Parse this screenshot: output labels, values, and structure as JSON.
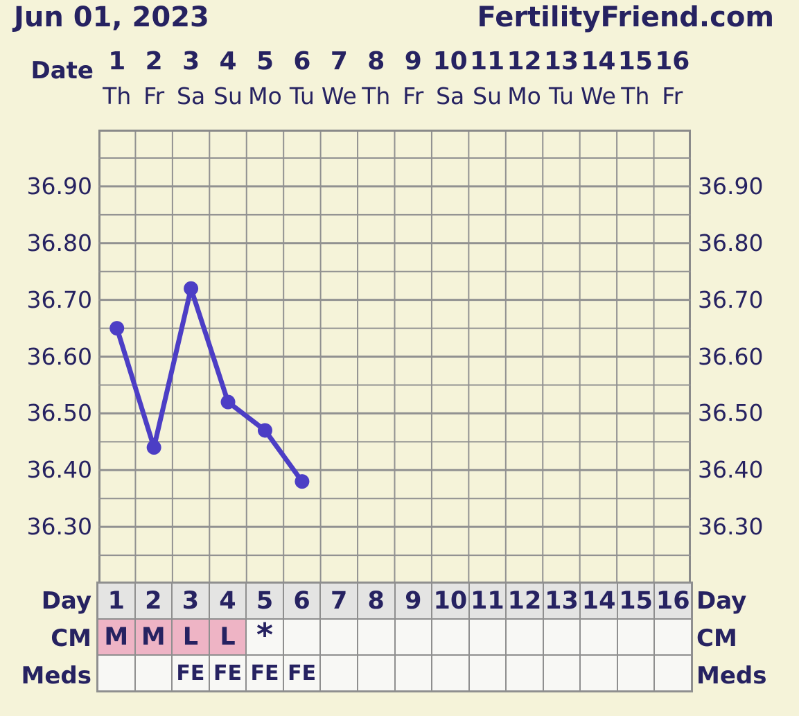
{
  "page": {
    "title": "Jun 01, 2023",
    "brand": "FertilityFriend.com"
  },
  "labels": {
    "date_axis": "Date"
  },
  "chart_data": {
    "type": "line",
    "title": "Basal body temperature chart",
    "x_label": "Date",
    "x_days": [
      "1",
      "2",
      "3",
      "4",
      "5",
      "6",
      "7",
      "8",
      "9",
      "10",
      "11",
      "12",
      "13",
      "14",
      "15",
      "16"
    ],
    "weekdays": [
      "Th",
      "Fr",
      "Sa",
      "Su",
      "Mo",
      "Tu",
      "We",
      "Th",
      "Fr",
      "Sa",
      "Su",
      "Mo",
      "Tu",
      "We",
      "Th",
      "Fr"
    ],
    "series": [
      {
        "name": "temperature-celsius",
        "days": [
          1,
          2,
          3,
          4,
          5,
          6
        ],
        "values": [
          36.65,
          36.44,
          36.72,
          36.52,
          36.47,
          36.38
        ]
      }
    ],
    "ylim": [
      36.2,
      37.0
    ],
    "y_minor_step": 0.05,
    "y_major_step": 0.1,
    "yticks": [
      "36.90",
      "36.80",
      "36.70",
      "36.60",
      "36.50",
      "36.40",
      "36.30"
    ],
    "grid": true,
    "legend": "none"
  },
  "table": {
    "rows": [
      {
        "label": "Day",
        "type": "day",
        "cells": [
          "1",
          "2",
          "3",
          "4",
          "5",
          "6",
          "7",
          "8",
          "9",
          "10",
          "11",
          "12",
          "13",
          "14",
          "15",
          "16"
        ]
      },
      {
        "label": "CM",
        "type": "cm",
        "pink_days": [
          1,
          2,
          3,
          4
        ],
        "cells": [
          "M",
          "M",
          "L",
          "L",
          "*",
          "",
          "",
          "",
          "",
          "",
          "",
          "",
          "",
          "",
          "",
          ""
        ]
      },
      {
        "label": "Meds",
        "type": "meds",
        "cells": [
          "",
          "",
          "FE",
          "FE",
          "FE",
          "FE",
          "",
          "",
          "",
          "",
          "",
          "",
          "",
          "",
          "",
          ""
        ]
      }
    ]
  },
  "colors": {
    "background": "#f5f3d9",
    "text_navy": "#262261",
    "grid_line": "#919191",
    "grid_border": "#8a8a8a",
    "line_series": "#4c3ec5",
    "cell_plain": "#f8f8f5",
    "cell_day_bg": "#e4e4e3",
    "cell_pink": "#eeb4c5",
    "cell_border": "#8f8f8f"
  }
}
